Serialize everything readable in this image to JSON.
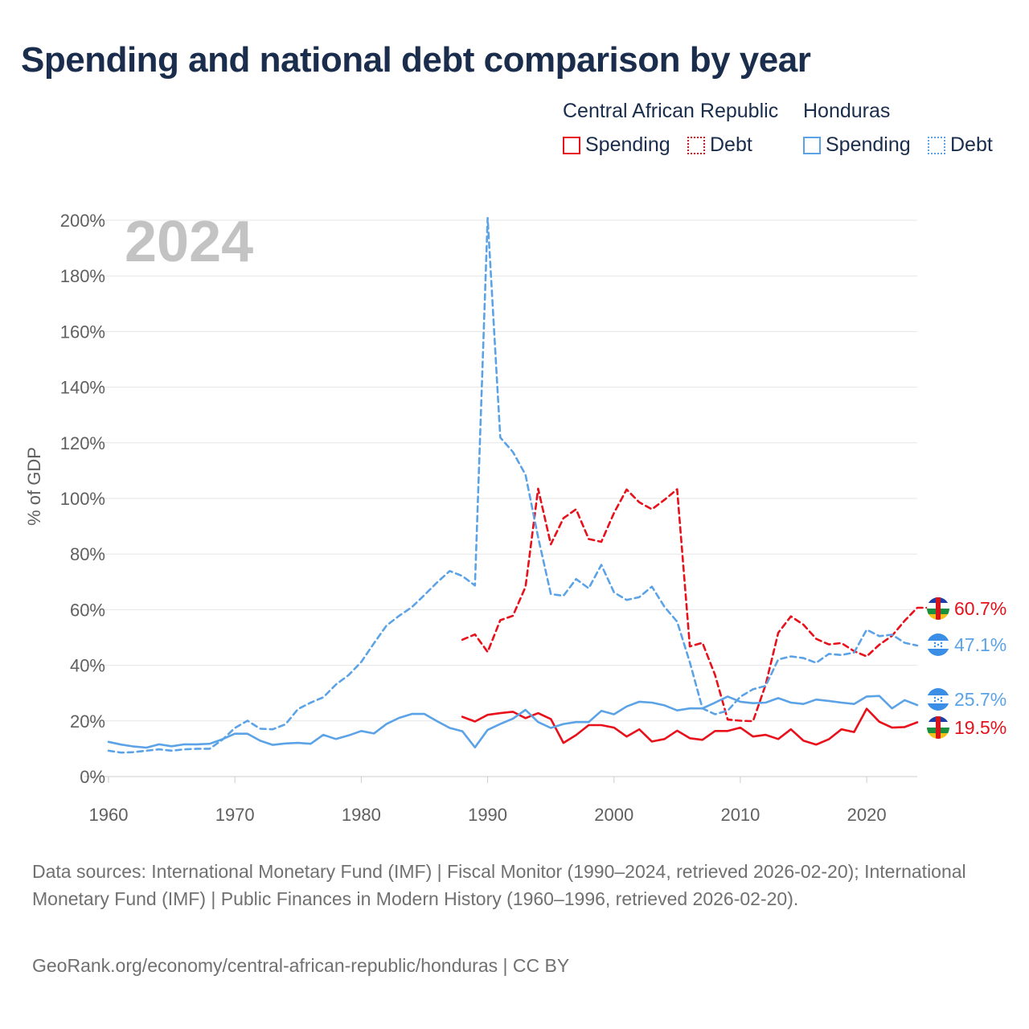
{
  "title": "Spending and national debt comparison by year",
  "legend": {
    "groups": [
      {
        "country": "Central African Republic",
        "spending_label": "Spending",
        "debt_label": "Debt",
        "color": "#e8101a"
      },
      {
        "country": "Honduras",
        "spending_label": "Spending",
        "debt_label": "Debt",
        "color": "#5ba3e6"
      }
    ]
  },
  "footer": {
    "sources": "Data sources: International Monetary Fund (IMF) | Fiscal Monitor (1990–2024, retrieved 2026-02-20); International Monetary Fund (IMF) | Public Finances in Modern History (1960–1996, retrieved 2026-02-20).",
    "credit": "GeoRank.org/economy/central-african-republic/honduras | CC BY"
  },
  "chart_data": {
    "type": "line",
    "title": "Spending and national debt comparison by year",
    "year_label": "2024",
    "ylabel": "% of GDP",
    "xlabel": "",
    "xlim": [
      1960,
      2024
    ],
    "ylim": [
      0,
      200
    ],
    "x_ticks": [
      1960,
      1970,
      1980,
      1990,
      2000,
      2010,
      2020
    ],
    "y_ticks": [
      0,
      20,
      40,
      60,
      80,
      100,
      120,
      140,
      160,
      180,
      200
    ],
    "y_tick_labels": [
      "0%",
      "20%",
      "40%",
      "60%",
      "80%",
      "100%",
      "120%",
      "140%",
      "160%",
      "180%",
      "200%"
    ],
    "grid": true,
    "series": [
      {
        "name": "Central African Republic Spending",
        "style": "solid",
        "color": "#e8101a",
        "end_label": "19.5%",
        "start_year": 1988,
        "values": [
          21.5,
          19.8,
          22.2,
          22.8,
          23.3,
          21.0,
          22.8,
          20.7,
          12.1,
          14.9,
          18.5,
          18.5,
          17.6,
          14.4,
          17.0,
          12.6,
          13.5,
          16.5,
          13.8,
          13.2,
          16.4,
          16.4,
          17.6,
          14.4,
          15.0,
          13.5,
          17.0,
          12.9,
          11.5,
          13.4,
          17.0,
          16.0,
          24.4,
          19.7,
          17.6,
          17.8,
          19.5
        ]
      },
      {
        "name": "Central African Republic Debt",
        "style": "dashed",
        "color": "#e8101a",
        "end_label": "60.7%",
        "start_year": 1988,
        "values": [
          49.2,
          51.1,
          44.8,
          56.2,
          57.8,
          68.2,
          103.5,
          83.5,
          92.9,
          96.1,
          85.4,
          84.4,
          94.8,
          103.2,
          98.6,
          96.1,
          99.5,
          103.3,
          46.8,
          48.1,
          36.5,
          20.5,
          20.1,
          19.9,
          33.0,
          51.7,
          57.6,
          54.6,
          49.5,
          47.5,
          48.0,
          45.1,
          43.2,
          47.4,
          50.6,
          56.0,
          60.7,
          60.7
        ]
      },
      {
        "name": "Honduras Spending",
        "style": "solid",
        "color": "#5ba3e6",
        "end_label": "25.7%",
        "start_year": 1960,
        "values": [
          12.5,
          11.5,
          10.8,
          10.4,
          11.6,
          10.9,
          11.6,
          11.6,
          11.8,
          13.4,
          15.4,
          15.4,
          12.9,
          11.4,
          11.9,
          12.1,
          11.8,
          15.0,
          13.5,
          14.8,
          16.4,
          15.5,
          18.9,
          21.1,
          22.5,
          22.5,
          19.9,
          17.5,
          16.3,
          10.5,
          16.8,
          18.9,
          20.8,
          24.0,
          19.6,
          17.5,
          18.9,
          19.6,
          19.6,
          23.6,
          22.4,
          25.2,
          26.9,
          26.6,
          25.6,
          23.8,
          24.5,
          24.5,
          26.6,
          28.8,
          26.9,
          26.4,
          26.6,
          28.2,
          26.6,
          26.1,
          27.7,
          27.2,
          26.6,
          26.1,
          28.8,
          29.0,
          24.5,
          27.5,
          25.7
        ]
      },
      {
        "name": "Honduras Debt",
        "style": "dashed",
        "color": "#5ba3e6",
        "end_label": "47.1%",
        "start_year": 1960,
        "values": [
          9.3,
          8.6,
          8.8,
          9.3,
          9.8,
          9.3,
          9.8,
          10.0,
          10.0,
          13.2,
          17.5,
          20.1,
          17.2,
          17.0,
          18.8,
          24.3,
          26.6,
          28.5,
          33.1,
          36.5,
          41.2,
          47.9,
          54.3,
          57.8,
          60.9,
          65.3,
          69.8,
          73.9,
          72.1,
          68.7,
          200.8,
          121.9,
          116.7,
          108.5,
          86.0,
          65.6,
          65.0,
          71.0,
          67.7,
          76.1,
          66.2,
          63.5,
          64.5,
          68.3,
          61.0,
          55.7,
          41.1,
          24.5,
          22.4,
          23.7,
          28.7,
          31.4,
          32.6,
          42.1,
          43.2,
          42.6,
          40.9,
          44.1,
          43.7,
          44.6,
          52.8,
          50.5,
          51.0,
          48.1,
          47.1
        ]
      }
    ]
  }
}
